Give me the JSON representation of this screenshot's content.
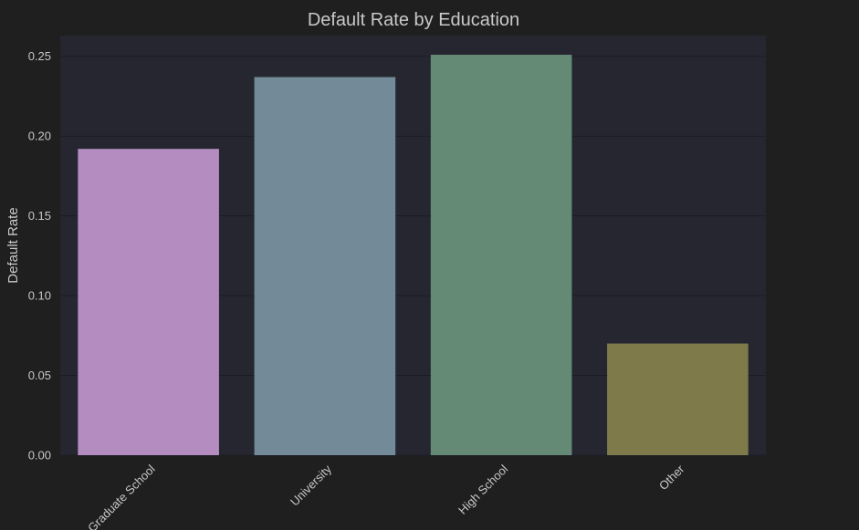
{
  "chart_data": {
    "type": "bar",
    "title": "Default Rate by Education",
    "xlabel": "",
    "ylabel": "Default Rate",
    "categories": [
      "Graduate School",
      "University",
      "High School",
      "Other"
    ],
    "values": [
      0.192,
      0.237,
      0.251,
      0.07
    ],
    "colors": [
      "#b48cbf",
      "#738a98",
      "#648a76",
      "#7e7a4a"
    ],
    "ylim": [
      0,
      0.263
    ],
    "yticks": [
      "0.00",
      "0.05",
      "0.10",
      "0.15",
      "0.20",
      "0.25"
    ],
    "grid": true,
    "legend": "none",
    "theme": {
      "figure_bg": "#1f1f1f",
      "plot_bg": "#262630",
      "grid_color": "#1c1c24",
      "text_color": "#c7c7c7"
    }
  }
}
